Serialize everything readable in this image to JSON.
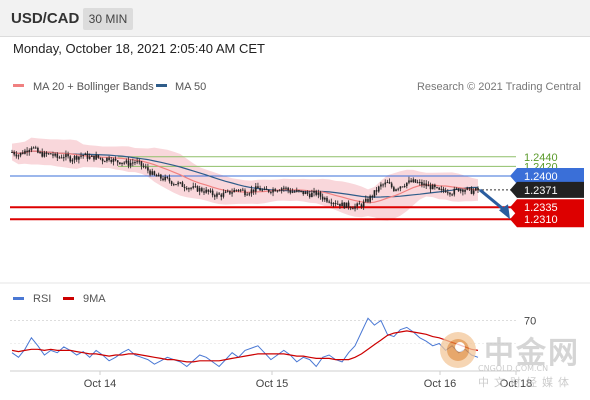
{
  "header": {
    "symbol": "USD/CAD",
    "interval": "30 MIN"
  },
  "datetime": "Monday, October 18, 2021 2:05:40 AM CET",
  "legend": {
    "ma20_bb": "MA 20 + Bollinger Bands",
    "ma50": "MA 50",
    "rsi": "RSI",
    "ma9": "9MA"
  },
  "copyright": "Research © 2021 Trading Central",
  "colors": {
    "ma20": "#f08080",
    "ma50": "#2f5d8a",
    "bands": "#f7c9cf",
    "resistance": "#8fbf6a",
    "support": "#dd0000",
    "pivot": "#3a6fd8",
    "last": "#222222",
    "rsi": "#4a78d4",
    "ma9": "#cc0000",
    "arrow": "#2a5d9f"
  },
  "chart_data": [
    {
      "type": "candlestick",
      "ylim": [
        1.23,
        1.248
      ],
      "x_ticks": [
        "Oct 14",
        "Oct 15",
        "Oct 16",
        "Oct 18"
      ],
      "levels": [
        {
          "value": 1.244,
          "label": "1.2440",
          "kind": "resistance"
        },
        {
          "value": 1.242,
          "label": "1.2420",
          "kind": "resistance"
        },
        {
          "value": 1.24,
          "label": "1.2400",
          "kind": "pivot"
        },
        {
          "value": 1.2371,
          "label": "1.2371",
          "kind": "last"
        },
        {
          "value": 1.2335,
          "label": "1.2335",
          "kind": "support"
        },
        {
          "value": 1.231,
          "label": "1.2310",
          "kind": "support"
        }
      ],
      "price_path": [
        1.245,
        1.2444,
        1.2452,
        1.2462,
        1.2448,
        1.2444,
        1.2446,
        1.2438,
        1.2442,
        1.2436,
        1.244,
        1.2444,
        1.2438,
        1.244,
        1.2434,
        1.2438,
        1.243,
        1.243,
        1.2426,
        1.243,
        1.2422,
        1.2412,
        1.24,
        1.2396,
        1.2392,
        1.2386,
        1.2382,
        1.2378,
        1.2374,
        1.2372,
        1.2368,
        1.2362,
        1.236,
        1.2363,
        1.2368,
        1.2373,
        1.2366,
        1.237,
        1.2374,
        1.2368,
        1.2371,
        1.2374,
        1.2376,
        1.2368,
        1.2367,
        1.2365,
        1.2362,
        1.2364,
        1.2355,
        1.235,
        1.2345,
        1.234,
        1.2338,
        1.2336,
        1.234,
        1.235,
        1.2365,
        1.238,
        1.2385,
        1.2373,
        1.238,
        1.2386,
        1.2388,
        1.2384,
        1.238,
        1.2376,
        1.2368,
        1.2371,
        1.2366,
        1.2373,
        1.2373,
        1.2368,
        1.2371
      ],
      "forecast": {
        "from": 1.2371,
        "to": 1.231
      }
    },
    {
      "type": "line",
      "series_names": [
        "RSI",
        "9MA"
      ],
      "y_ticks": [
        70
      ],
      "ylim": [
        0,
        100
      ],
      "rsi": [
        42,
        38,
        45,
        55,
        48,
        40,
        44,
        42,
        47,
        44,
        40,
        43,
        38,
        44,
        40,
        35,
        38,
        42,
        45,
        40,
        38,
        36,
        32,
        35,
        38,
        36,
        34,
        30,
        35,
        40,
        38,
        34,
        30,
        36,
        42,
        38,
        44,
        46,
        48,
        42,
        36,
        40,
        44,
        40,
        34,
        38,
        36,
        30,
        38,
        40,
        36,
        34,
        42,
        48,
        60,
        72,
        66,
        70,
        58,
        56,
        62,
        64,
        60,
        55,
        52,
        48,
        50,
        44,
        48,
        42,
        45,
        40,
        38
      ],
      "ma9": [
        44,
        43,
        44,
        45,
        45,
        44,
        45,
        44,
        44,
        44,
        43,
        42,
        41,
        41,
        40,
        39,
        40,
        40,
        41,
        41,
        40,
        39,
        38,
        37,
        36,
        36,
        35,
        34,
        34,
        35,
        35,
        35,
        35,
        36,
        37,
        38,
        39,
        40,
        41,
        41,
        41,
        41,
        41,
        40,
        39,
        39,
        38,
        37,
        37,
        37,
        36,
        36,
        36,
        38,
        41,
        45,
        49,
        53,
        57,
        59,
        60,
        61,
        60,
        59,
        58,
        56,
        55,
        53,
        51,
        49,
        47,
        45,
        44
      ]
    }
  ]
}
